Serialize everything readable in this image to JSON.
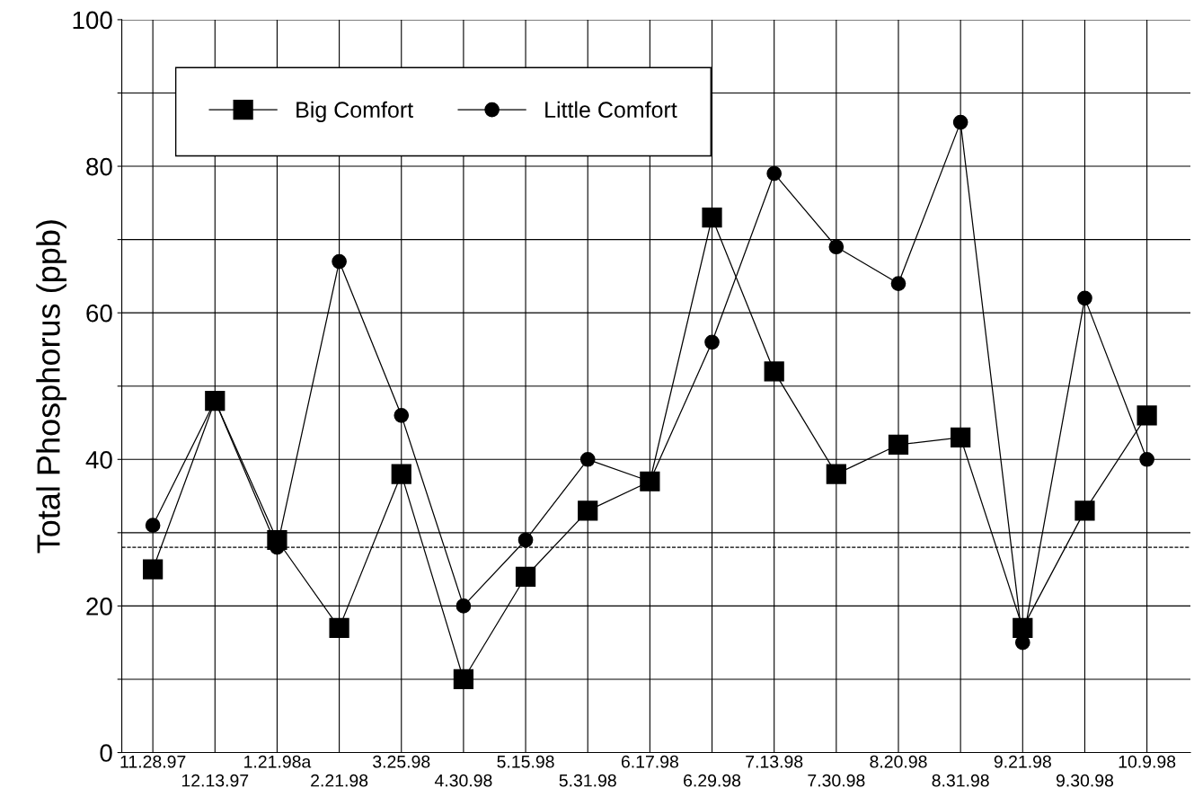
{
  "chart_data": {
    "type": "line",
    "ylabel": "Total Phosphorus (ppb)",
    "categories": [
      "11.28.97",
      "12.13.97",
      "1.21.98a",
      "2.21.98",
      "3.25.98",
      "4.30.98",
      "5.15.98",
      "5.31.98",
      "6.17.98",
      "6.29.98",
      "7.13.98",
      "7.30.98",
      "8.20.98",
      "8.31.98",
      "9.21.98",
      "9.30.98",
      "10.9.98"
    ],
    "series": [
      {
        "name": "Big Comfort",
        "color": "#000000",
        "marker": "square",
        "values": [
          25,
          48,
          29,
          17,
          38,
          10,
          24,
          33,
          37,
          73,
          52,
          38,
          42,
          43,
          17,
          33,
          46
        ]
      },
      {
        "name": "Little Comfort",
        "color": "#000000",
        "marker": "circle",
        "values": [
          31,
          48,
          28,
          67,
          46,
          20,
          29,
          40,
          37,
          56,
          79,
          69,
          64,
          86,
          15,
          62,
          40
        ]
      }
    ],
    "ylim": [
      0,
      100
    ],
    "yticks": [
      0,
      {
        "value": 10,
        "label": null
      },
      20,
      {
        "value": 30,
        "label": null
      },
      40,
      {
        "value": 50,
        "label": null
      },
      60,
      {
        "value": 70,
        "label": null
      },
      80,
      {
        "value": 90,
        "label": null
      },
      100
    ],
    "ref_lines": [
      {
        "axis": "y",
        "value": 28,
        "label": null,
        "color": "#000000",
        "line_style": "dashed"
      }
    ],
    "grid": true,
    "legend": "top left",
    "line_style": "solid"
  }
}
